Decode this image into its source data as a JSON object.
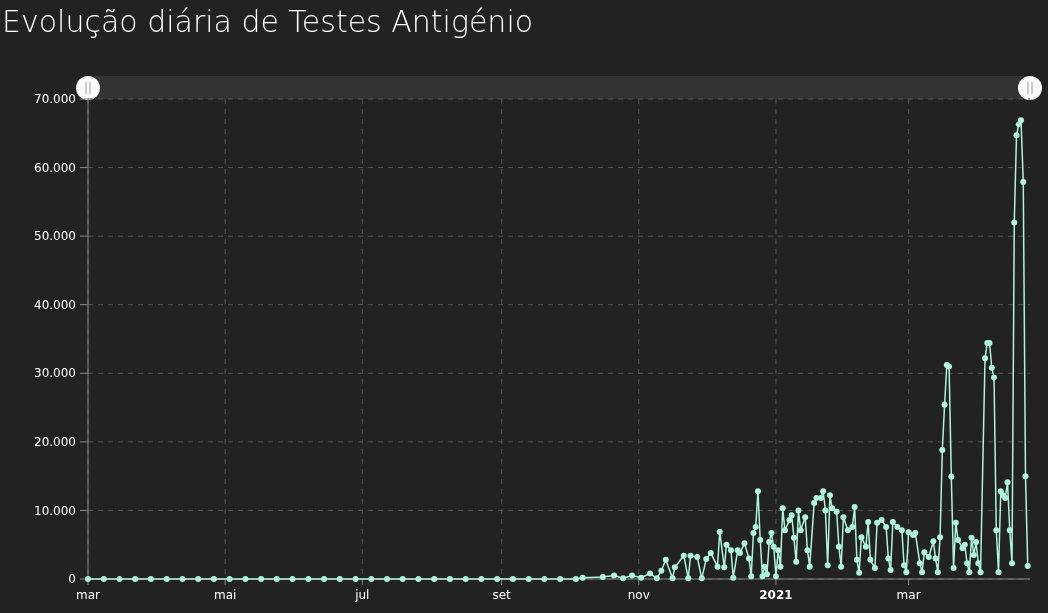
{
  "chart_data": {
    "type": "line",
    "title": "Evolução diária de Testes Antigénio",
    "x": [
      "2020-03-01",
      "2020-03-08",
      "2020-03-15",
      "2020-03-22",
      "2020-03-29",
      "2020-04-05",
      "2020-04-12",
      "2020-04-19",
      "2020-04-26",
      "2020-05-03",
      "2020-05-10",
      "2020-05-17",
      "2020-05-24",
      "2020-05-31",
      "2020-06-07",
      "2020-06-14",
      "2020-06-21",
      "2020-06-28",
      "2020-07-05",
      "2020-07-12",
      "2020-07-19",
      "2020-07-26",
      "2020-08-02",
      "2020-08-09",
      "2020-08-16",
      "2020-08-23",
      "2020-08-30",
      "2020-09-06",
      "2020-09-13",
      "2020-09-20",
      "2020-09-27",
      "2020-10-04",
      "2020-10-07",
      "2020-10-16",
      "2020-10-21",
      "2020-10-25",
      "2020-10-29",
      "2020-11-02",
      "2020-11-06",
      "2020-11-09",
      "2020-11-11",
      "2020-11-13",
      "2020-11-16",
      "2020-11-17",
      "2020-11-21",
      "2020-11-23",
      "2020-11-24",
      "2020-11-27",
      "2020-11-29",
      "2020-12-01",
      "2020-12-03",
      "2020-12-06",
      "2020-12-07",
      "2020-12-09",
      "2020-12-10",
      "2020-12-12",
      "2020-12-13",
      "2020-12-15",
      "2020-12-16",
      "2020-12-18",
      "2020-12-20",
      "2020-12-21",
      "2020-12-22",
      "2020-12-23",
      "2020-12-24",
      "2020-12-25",
      "2020-12-26",
      "2020-12-27",
      "2020-12-28",
      "2020-12-29",
      "2020-12-30",
      "2020-12-31",
      "2021-01-01",
      "2021-01-02",
      "2021-01-03",
      "2021-01-04",
      "2021-01-05",
      "2021-01-07",
      "2021-01-08",
      "2021-01-09",
      "2021-01-10",
      "2021-01-11",
      "2021-01-12",
      "2021-01-14",
      "2021-01-15",
      "2021-01-16",
      "2021-01-18",
      "2021-01-19",
      "2021-01-21",
      "2021-01-22",
      "2021-01-23",
      "2021-01-24",
      "2021-01-25",
      "2021-01-26",
      "2021-01-28",
      "2021-01-29",
      "2021-01-30",
      "2021-01-31",
      "2021-02-02",
      "2021-02-04",
      "2021-02-05",
      "2021-02-06",
      "2021-02-07",
      "2021-02-08",
      "2021-02-10",
      "2021-02-11",
      "2021-02-12",
      "2021-02-14",
      "2021-02-15",
      "2021-02-17",
      "2021-02-19",
      "2021-02-20",
      "2021-02-21",
      "2021-02-22",
      "2021-02-24",
      "2021-02-26",
      "2021-02-27",
      "2021-02-28",
      "2021-03-01",
      "2021-03-03",
      "2021-03-04",
      "2021-03-06",
      "2021-03-07",
      "2021-03-08",
      "2021-03-10",
      "2021-03-12",
      "2021-03-13",
      "2021-03-14",
      "2021-03-15",
      "2021-03-16",
      "2021-03-17",
      "2021-03-18",
      "2021-03-19",
      "2021-03-20",
      "2021-03-21",
      "2021-03-22",
      "2021-03-23",
      "2021-03-25",
      "2021-03-26",
      "2021-03-27",
      "2021-03-28",
      "2021-03-29",
      "2021-03-30",
      "2021-03-31",
      "2021-04-01",
      "2021-04-02",
      "2021-04-04",
      "2021-04-05",
      "2021-04-06",
      "2021-04-07",
      "2021-04-08",
      "2021-04-09",
      "2021-04-10",
      "2021-04-11",
      "2021-04-12",
      "2021-04-13",
      "2021-04-14",
      "2021-04-15",
      "2021-04-16",
      "2021-04-17",
      "2021-04-18",
      "2021-04-19",
      "2021-04-20",
      "2021-04-21",
      "2021-04-22",
      "2021-04-23"
    ],
    "series": [
      {
        "color": "#aef5dc",
        "values": [
          0,
          0,
          0,
          0,
          0,
          0,
          0,
          0,
          0,
          0,
          0,
          0,
          0,
          0,
          0,
          0,
          0,
          0,
          0,
          0,
          0,
          0,
          0,
          0,
          0,
          0,
          0,
          0,
          0,
          0,
          0,
          0,
          200,
          300,
          500,
          100,
          500,
          200,
          800,
          100,
          1200,
          2800,
          100,
          1700,
          3400,
          100,
          3400,
          3200,
          100,
          2900,
          3800,
          1800,
          6900,
          1700,
          5000,
          4200,
          200,
          4200,
          3800,
          5200,
          3000,
          400,
          6700,
          7600,
          12800,
          5700,
          400,
          1800,
          700,
          5400,
          6700,
          4700,
          400,
          4200,
          1800,
          10300,
          7100,
          8600,
          9300,
          6000,
          2500,
          10000,
          7100,
          9000,
          4200,
          1800,
          11100,
          11800,
          11800,
          12800,
          10000,
          2000,
          12200,
          10300,
          9800,
          4700,
          1800,
          9000,
          7100,
          7600,
          10500,
          2800,
          900,
          6100,
          4700,
          8300,
          2800,
          1600,
          8200,
          8600,
          7600,
          3000,
          1300,
          8300,
          7600,
          7100,
          2000,
          1000,
          6800,
          6400,
          6700,
          2300,
          1000,
          3900,
          3200,
          5500,
          3000,
          1000,
          6100,
          18800,
          25400,
          31200,
          31000,
          14900,
          1600,
          8200,
          5700,
          4500,
          5000,
          2300,
          1000,
          6000,
          3500,
          5400,
          2300,
          1000,
          32200,
          34400,
          34400,
          30800,
          29400,
          7100,
          1000,
          12800,
          12200,
          11800,
          14100,
          7100,
          2300,
          52000,
          64700,
          66300,
          66900,
          57900,
          15000,
          1900
        ]
      }
    ],
    "xlim": [
      "2020-03-01",
      "2021-04-24"
    ],
    "xticks": [
      {
        "value": "2020-03-01",
        "label": "mar"
      },
      {
        "value": "2020-05-01",
        "label": "mai"
      },
      {
        "value": "2020-07-01",
        "label": "jul"
      },
      {
        "value": "2020-09-01",
        "label": "set"
      },
      {
        "value": "2020-11-01",
        "label": "nov"
      },
      {
        "value": "2021-01-01",
        "label": "2021"
      },
      {
        "value": "2021-03-01",
        "label": "mar"
      }
    ],
    "ylim": [
      0,
      70000
    ],
    "yticks": [
      0,
      {
        "value": 10000,
        "label": "10.000"
      },
      {
        "value": 20000,
        "label": "20.000"
      },
      {
        "value": 30000,
        "label": "30.000"
      },
      {
        "value": 40000,
        "label": "40.000"
      },
      {
        "value": 50000,
        "label": "50.000"
      },
      {
        "value": 60000,
        "label": "60.000"
      },
      {
        "value": 70000,
        "label": "70.000"
      }
    ],
    "grid": true,
    "marker": "circle",
    "line_style": "solid"
  }
}
